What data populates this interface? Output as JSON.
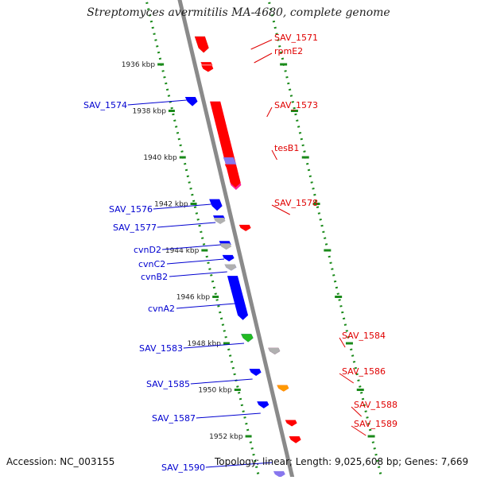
{
  "title": "Streptomyces avermitilis MA-4680, complete genome",
  "footer": {
    "accession": "Accession: NC_003155",
    "stats": "Topology: linear; Length: 9,025,608 bp; Genes: 7,669"
  },
  "kbp_ticks": [
    "1936 kbp",
    "1938 kbp",
    "1940 kbp",
    "1942 kbp",
    "1944 kbp",
    "1946 kbp",
    "1948 kbp",
    "1950 kbp",
    "1952 kbp"
  ],
  "colors": {
    "red_label": "#e00000",
    "blue_label": "#0000d0",
    "axis": "#8a8a8a",
    "dots": "#1a8a1a",
    "gene_red": "#ff0000",
    "gene_blue": "#0000ff",
    "gene_green": "#22bb22",
    "gene_pink": "#ff2299",
    "gene_lavender": "#8877ee",
    "gene_gray": "#b0b0b0",
    "gene_orange": "#ff9900",
    "gene_navy": "#000066",
    "gene_teal": "#22ddaa",
    "gene_lightred": "#ff7777"
  },
  "right_labels": [
    "SAV_1571",
    "rpmE2",
    "SAV_1573",
    "tesB1",
    "SAV_1578",
    "SAV_1584",
    "SAV_1586",
    "SAV_1588",
    "SAV_1589"
  ],
  "left_labels": [
    "SAV_1574",
    "SAV_1576",
    "SAV_1577",
    "cvnD2",
    "cvnC2",
    "cvnB2",
    "cvnA2",
    "SAV_1583",
    "SAV_1585",
    "SAV_1587",
    "SAV_1590"
  ],
  "genes": [
    {
      "track": "right",
      "kb": 1934.8,
      "len_kb": 0.7,
      "color": "gene_teal"
    },
    {
      "track": "right",
      "kb": 1934.8,
      "len_kb": 0.7,
      "color": "gene_red"
    },
    {
      "track": "right",
      "kb": 1935.9,
      "len_kb": 0.15,
      "color": "gene_red"
    },
    {
      "track": "right",
      "kb": 1936.0,
      "len_kb": 0.12,
      "color": "gene_lightred"
    },
    {
      "track": "right",
      "kb": 1936.05,
      "len_kb": 0.08,
      "color": "gene_red"
    },
    {
      "track": "left",
      "kb": 1937.4,
      "len_kb": 0.4,
      "color": "gene_blue"
    },
    {
      "track": "right",
      "kb": 1937.6,
      "len_kb": 3.8,
      "color": "gene_pink"
    },
    {
      "track": "right",
      "kb": 1937.6,
      "len_kb": 3.7,
      "color": "gene_red"
    },
    {
      "track": "right",
      "kb": 1940.0,
      "len_kb": 0.5,
      "color": "gene_lavender"
    },
    {
      "track": "right",
      "kb": 1940.3,
      "len_kb": 0.4,
      "color": "gene_red"
    },
    {
      "track": "left",
      "kb": 1941.8,
      "len_kb": 0.5,
      "color": "gene_blue"
    },
    {
      "track": "left",
      "kb": 1942.5,
      "len_kb": 0.2,
      "color": "gene_blue"
    },
    {
      "track": "left",
      "kb": 1942.6,
      "len_kb": 0.2,
      "color": "gene_gray"
    },
    {
      "track": "right",
      "kb": 1942.9,
      "len_kb": 0.15,
      "color": "gene_red"
    },
    {
      "track": "left",
      "kb": 1943.6,
      "len_kb": 0.3,
      "color": "gene_blue"
    },
    {
      "track": "left",
      "kb": 1943.7,
      "len_kb": 0.2,
      "color": "gene_gray"
    },
    {
      "track": "left",
      "kb": 1944.2,
      "len_kb": 0.2,
      "color": "gene_blue"
    },
    {
      "track": "left",
      "kb": 1944.6,
      "len_kb": 0.2,
      "color": "gene_blue"
    },
    {
      "track": "left",
      "kb": 1944.6,
      "len_kb": 0.15,
      "color": "gene_gray"
    },
    {
      "track": "left",
      "kb": 1945.1,
      "len_kb": 1.9,
      "color": "gene_blue"
    },
    {
      "track": "left",
      "kb": 1947.6,
      "len_kb": 0.35,
      "color": "gene_blue"
    },
    {
      "track": "left",
      "kb": 1947.6,
      "len_kb": 0.35,
      "color": "gene_green"
    },
    {
      "track": "right",
      "kb": 1948.2,
      "len_kb": 0.25,
      "color": "gene_red"
    },
    {
      "track": "right",
      "kb": 1948.2,
      "len_kb": 0.2,
      "color": "gene_navy"
    },
    {
      "track": "right",
      "kb": 1948.2,
      "len_kb": 0.2,
      "color": "gene_gray"
    },
    {
      "track": "left",
      "kb": 1949.1,
      "len_kb": 0.3,
      "color": "gene_blue"
    },
    {
      "track": "right",
      "kb": 1949.8,
      "len_kb": 0.25,
      "color": "gene_red"
    },
    {
      "track": "right",
      "kb": 1949.8,
      "len_kb": 0.25,
      "color": "gene_orange"
    },
    {
      "track": "left",
      "kb": 1950.5,
      "len_kb": 0.3,
      "color": "gene_blue"
    },
    {
      "track": "right",
      "kb": 1951.3,
      "len_kb": 0.1,
      "color": "gene_red"
    },
    {
      "track": "right",
      "kb": 1952.0,
      "len_kb": 0.3,
      "color": "gene_red"
    },
    {
      "track": "left",
      "kb": 1953.5,
      "len_kb": 0.2,
      "color": "gene_lavender"
    }
  ]
}
